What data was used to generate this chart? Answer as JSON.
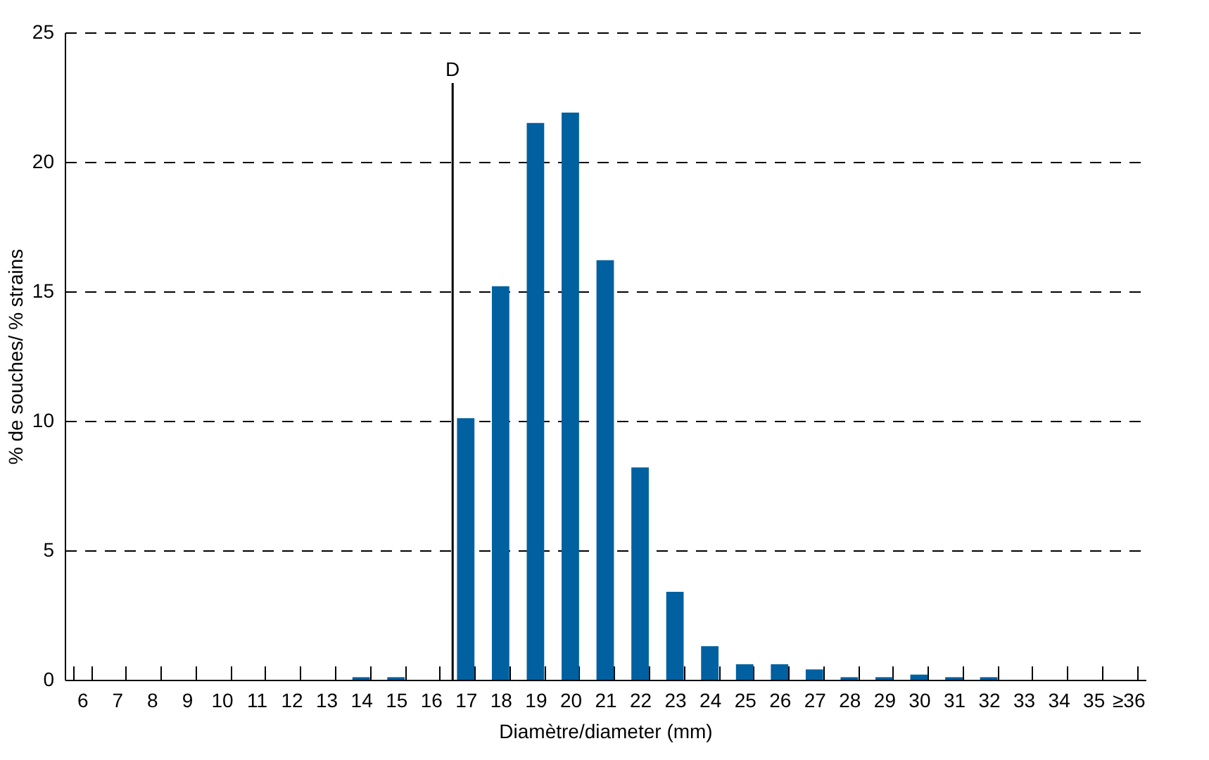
{
  "chart_data": {
    "type": "bar",
    "xlabel": "Diamètre/diameter (mm)",
    "ylabel": "% de souches/ % strains",
    "categories": [
      "6",
      "7",
      "8",
      "9",
      "10",
      "11",
      "12",
      "13",
      "14",
      "15",
      "16",
      "17",
      "18",
      "19",
      "20",
      "21",
      "22",
      "23",
      "24",
      "25",
      "26",
      "27",
      "28",
      "29",
      "30",
      "31",
      "32",
      "33",
      "34",
      "35",
      "≥36"
    ],
    "values": [
      0,
      0,
      0,
      0,
      0,
      0,
      0,
      0,
      0.1,
      0.1,
      0,
      10.1,
      15.2,
      21.5,
      21.9,
      16.2,
      8.2,
      3.4,
      1.3,
      0.6,
      0.6,
      0.4,
      0.1,
      0.1,
      0.2,
      0.1,
      0.1,
      0,
      0,
      0,
      0
    ],
    "color": "#0060a0",
    "ylim": [
      0,
      25
    ],
    "yticks": [
      0,
      5,
      10,
      15,
      20,
      25
    ],
    "grid": "y",
    "ref_lines": [
      {
        "axis": "x",
        "value": "17",
        "label": "D",
        "color": "#000000"
      }
    ]
  }
}
